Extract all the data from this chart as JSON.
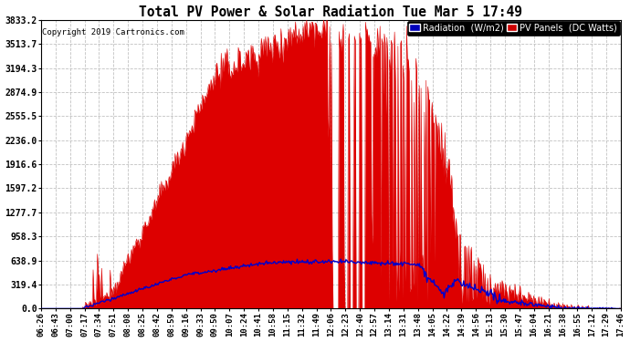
{
  "title": "Total PV Power & Solar Radiation Tue Mar 5 17:49",
  "copyright": "Copyright 2019 Cartronics.com",
  "yticks": [
    0.0,
    319.4,
    638.9,
    958.3,
    1277.7,
    1597.2,
    1916.6,
    2236.0,
    2555.5,
    2874.9,
    3194.3,
    3513.7,
    3833.2
  ],
  "ymax": 3833.2,
  "legend_radiation_label": "Radiation  (W/m2)",
  "legend_pv_label": "PV Panels  (DC Watts)",
  "legend_radiation_bg": "#0000bb",
  "legend_pv_bg": "#cc0000",
  "bg_color": "#ffffff",
  "plot_bg_color": "#ffffff",
  "grid_color": "#bbbbbb",
  "fill_color": "#dd0000",
  "line_color": "#0000cc",
  "n_points": 680,
  "xtick_labels": [
    "06:26",
    "06:43",
    "07:00",
    "07:17",
    "07:34",
    "07:51",
    "08:08",
    "08:25",
    "08:42",
    "08:59",
    "09:16",
    "09:33",
    "09:50",
    "10:07",
    "10:24",
    "10:41",
    "10:58",
    "11:15",
    "11:32",
    "11:49",
    "12:06",
    "12:23",
    "12:40",
    "12:57",
    "13:14",
    "13:31",
    "13:48",
    "14:05",
    "14:22",
    "14:39",
    "14:56",
    "15:13",
    "15:30",
    "15:47",
    "16:04",
    "16:21",
    "16:38",
    "16:55",
    "17:12",
    "17:29",
    "17:46"
  ]
}
